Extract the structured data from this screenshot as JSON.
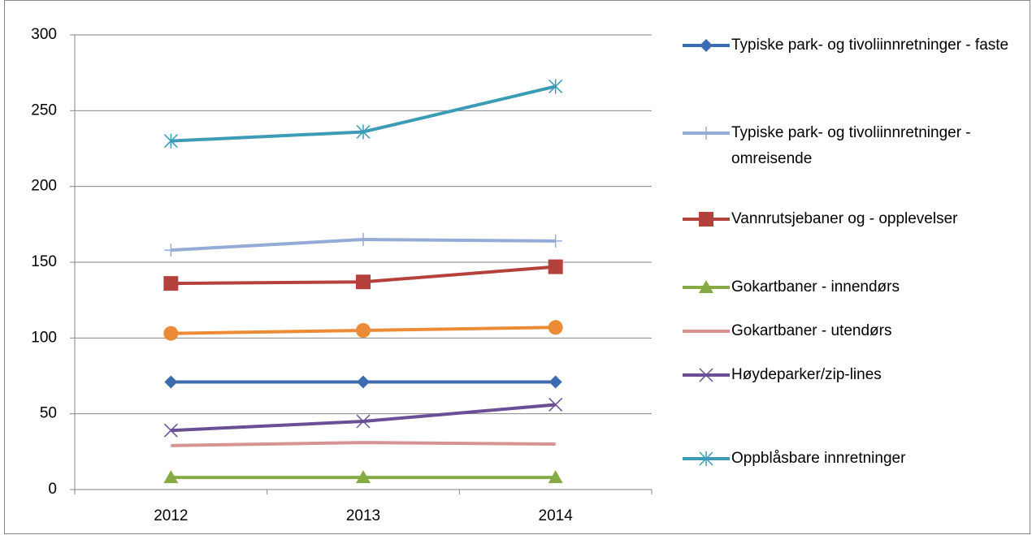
{
  "chart_data": {
    "type": "line",
    "categories": [
      "2012",
      "2013",
      "2014"
    ],
    "ylim": [
      0,
      300
    ],
    "yticks": [
      0,
      50,
      100,
      150,
      200,
      250,
      300
    ],
    "grid": true,
    "series": [
      {
        "name": "Typiske park- og tivoliinnretninger - faste",
        "color": "#3d6bb0",
        "marker": "diamond",
        "values": [
          71,
          71,
          71
        ]
      },
      {
        "name": "Typiske park- og tivoliinnretninger - omreisende",
        "color": "#94acd6",
        "marker": "plus",
        "values": [
          158,
          165,
          164
        ]
      },
      {
        "name": "Vannrutsjebaner og - opplevelser",
        "color": "#b5413d",
        "marker": "square",
        "values": [
          136,
          137,
          147
        ]
      },
      {
        "name": "Gokartbaner - innendørs",
        "color": "#86ab45",
        "marker": "triangle",
        "values": [
          8,
          8,
          8
        ]
      },
      {
        "name": "Gokartbaner - utendørs",
        "color": "#d69392",
        "marker": "none",
        "values": [
          29,
          31,
          30
        ]
      },
      {
        "name": "Høydeparker/zip-lines",
        "color": "#6a4f94",
        "marker": "x",
        "values": [
          39,
          45,
          56
        ]
      },
      {
        "name": "Oppblåsbare innretninger",
        "color": "#3c9cb5",
        "marker": "star",
        "values": [
          230,
          236,
          266
        ]
      },
      {
        "color": "#ec8b35",
        "marker": "circle",
        "values": [
          103,
          105,
          107
        ]
      }
    ]
  }
}
